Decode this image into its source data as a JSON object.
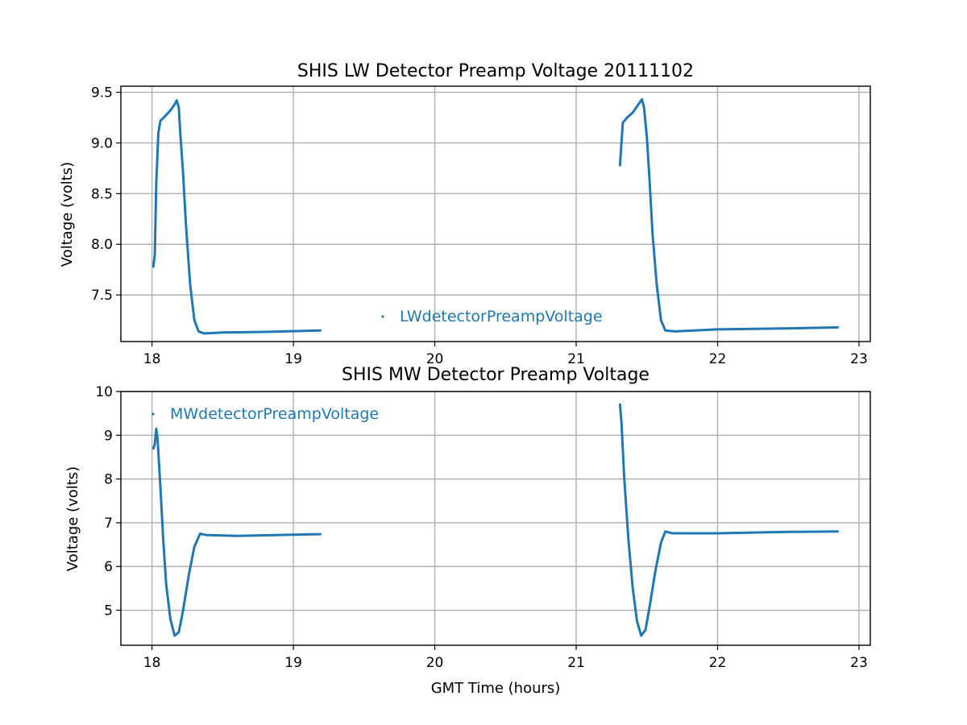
{
  "figure": {
    "xlabel": "GMT Time (hours)"
  },
  "chart_data": [
    {
      "type": "line",
      "title": "SHIS LW Detector Preamp Voltage 20111102",
      "xlabel": "",
      "ylabel": "Voltage (volts)",
      "xlim": [
        17.78,
        23.08
      ],
      "ylim": [
        7.04,
        9.56
      ],
      "xticks": [
        18,
        19,
        20,
        21,
        22,
        23
      ],
      "xtick_labels": [
        "18",
        "19",
        "20",
        "21",
        "22",
        "23"
      ],
      "yticks": [
        7.5,
        8.0,
        8.5,
        9.0,
        9.5
      ],
      "ytick_labels": [
        "7.5",
        "8.0",
        "8.5",
        "9.0",
        "9.5"
      ],
      "grid": true,
      "legend": "lower-center",
      "series": [
        {
          "name": "LWdetectorPreampVoltage",
          "color": "#1f77b4",
          "segments": [
            [
              [
                18.01,
                7.78
              ],
              [
                18.02,
                7.9
              ],
              [
                18.03,
                8.6
              ],
              [
                18.045,
                9.1
              ],
              [
                18.06,
                9.22
              ],
              [
                18.09,
                9.26
              ],
              [
                18.13,
                9.32
              ],
              [
                18.16,
                9.38
              ],
              [
                18.175,
                9.42
              ],
              [
                18.19,
                9.35
              ],
              [
                18.2,
                9.1
              ],
              [
                18.22,
                8.7
              ],
              [
                18.24,
                8.2
              ],
              [
                18.27,
                7.6
              ],
              [
                18.3,
                7.25
              ],
              [
                18.33,
                7.14
              ],
              [
                18.37,
                7.12
              ],
              [
                18.5,
                7.13
              ],
              [
                18.8,
                7.135
              ],
              [
                19.19,
                7.15
              ]
            ],
            [
              [
                21.31,
                8.78
              ],
              [
                21.32,
                9.0
              ],
              [
                21.33,
                9.2
              ],
              [
                21.36,
                9.25
              ],
              [
                21.4,
                9.3
              ],
              [
                21.44,
                9.38
              ],
              [
                21.465,
                9.43
              ],
              [
                21.48,
                9.35
              ],
              [
                21.5,
                9.05
              ],
              [
                21.52,
                8.6
              ],
              [
                21.54,
                8.1
              ],
              [
                21.57,
                7.6
              ],
              [
                21.6,
                7.25
              ],
              [
                21.63,
                7.15
              ],
              [
                21.7,
                7.14
              ],
              [
                22.0,
                7.16
              ],
              [
                22.5,
                7.17
              ],
              [
                22.85,
                7.18
              ]
            ]
          ]
        }
      ]
    },
    {
      "type": "line",
      "title": "SHIS MW Detector Preamp Voltage",
      "xlabel": "GMT Time (hours)",
      "ylabel": "Voltage (volts)",
      "xlim": [
        17.78,
        23.08
      ],
      "ylim": [
        4.2,
        10.0
      ],
      "xticks": [
        18,
        19,
        20,
        21,
        22,
        23
      ],
      "xtick_labels": [
        "18",
        "19",
        "20",
        "21",
        "22",
        "23"
      ],
      "yticks": [
        5,
        6,
        7,
        8,
        9,
        10
      ],
      "ytick_labels": [
        "5",
        "6",
        "7",
        "8",
        "9",
        "10"
      ],
      "grid": true,
      "legend": "upper-left",
      "series": [
        {
          "name": "MWdetectorPreampVoltage",
          "color": "#1f77b4",
          "segments": [
            [
              [
                18.01,
                8.7
              ],
              [
                18.02,
                8.8
              ],
              [
                18.03,
                9.15
              ],
              [
                18.04,
                8.9
              ],
              [
                18.06,
                7.8
              ],
              [
                18.08,
                6.6
              ],
              [
                18.1,
                5.6
              ],
              [
                18.13,
                4.8
              ],
              [
                18.16,
                4.42
              ],
              [
                18.19,
                4.5
              ],
              [
                18.22,
                5.0
              ],
              [
                18.26,
                5.8
              ],
              [
                18.3,
                6.45
              ],
              [
                18.34,
                6.75
              ],
              [
                18.38,
                6.72
              ],
              [
                18.6,
                6.7
              ],
              [
                18.9,
                6.72
              ],
              [
                19.19,
                6.74
              ]
            ],
            [
              [
                21.31,
                9.7
              ],
              [
                21.32,
                9.3
              ],
              [
                21.34,
                8.0
              ],
              [
                21.37,
                6.6
              ],
              [
                21.4,
                5.5
              ],
              [
                21.43,
                4.75
              ],
              [
                21.46,
                4.42
              ],
              [
                21.49,
                4.55
              ],
              [
                21.52,
                5.1
              ],
              [
                21.56,
                5.9
              ],
              [
                21.6,
                6.55
              ],
              [
                21.63,
                6.8
              ],
              [
                21.68,
                6.76
              ],
              [
                22.0,
                6.76
              ],
              [
                22.5,
                6.79
              ],
              [
                22.85,
                6.8
              ]
            ]
          ]
        }
      ]
    }
  ]
}
